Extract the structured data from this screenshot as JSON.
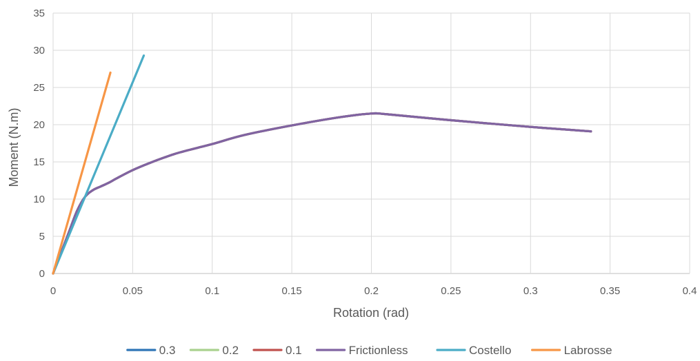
{
  "chart_data": {
    "type": "line",
    "title": "",
    "xlabel": "Rotation (rad)",
    "ylabel": "Moment (N.m)",
    "xlim": [
      0,
      0.4
    ],
    "ylim": [
      0,
      35
    ],
    "xticks": [
      0,
      0.05,
      0.1,
      0.15,
      0.2,
      0.25,
      0.3,
      0.35,
      0.4
    ],
    "xtick_labels": [
      "0",
      "0.05",
      "0.1",
      "0.15",
      "0.2",
      "0.25",
      "0.3",
      "0.35",
      "0.4"
    ],
    "yticks": [
      0,
      5,
      10,
      15,
      20,
      25,
      30,
      35
    ],
    "ytick_labels": [
      "0",
      "5",
      "10",
      "15",
      "20",
      "25",
      "30",
      "35"
    ],
    "grid": true,
    "legend_position": "bottom",
    "series": [
      {
        "name": "0.3",
        "color": "#2E75B6",
        "x": [
          0,
          0.005,
          0.01,
          0.015,
          0.02,
          0.025,
          0.03,
          0.035,
          0.04,
          0.05,
          0.06,
          0.07,
          0.08,
          0.1,
          0.12,
          0.15,
          0.18,
          0.2,
          0.21,
          0.25,
          0.3,
          0.338
        ],
        "y": [
          0,
          2.8,
          5.6,
          8.4,
          10.3,
          11.2,
          11.7,
          12.2,
          12.8,
          13.9,
          14.8,
          15.6,
          16.3,
          17.4,
          18.6,
          19.9,
          21.0,
          21.5,
          21.4,
          20.6,
          19.7,
          19.1
        ]
      },
      {
        "name": "0.2",
        "color": "#A9D18E",
        "x": [
          0,
          0.005,
          0.01,
          0.015,
          0.02,
          0.025,
          0.03,
          0.035,
          0.04,
          0.05,
          0.06,
          0.07,
          0.08,
          0.1,
          0.12,
          0.15,
          0.18,
          0.2,
          0.21,
          0.25,
          0.3,
          0.338
        ],
        "y": [
          0,
          2.8,
          5.6,
          8.4,
          10.3,
          11.2,
          11.7,
          12.2,
          12.8,
          13.9,
          14.8,
          15.6,
          16.3,
          17.4,
          18.6,
          19.9,
          21.0,
          21.5,
          21.4,
          20.6,
          19.7,
          19.1
        ]
      },
      {
        "name": "0.1",
        "color": "#C0504D",
        "x": [
          0,
          0.005,
          0.01,
          0.015,
          0.02,
          0.025,
          0.03,
          0.035,
          0.04,
          0.05,
          0.06,
          0.07,
          0.08,
          0.1,
          0.12,
          0.15,
          0.18,
          0.2,
          0.21,
          0.25,
          0.3,
          0.338
        ],
        "y": [
          0,
          2.8,
          5.6,
          8.4,
          10.3,
          11.2,
          11.7,
          12.2,
          12.8,
          13.9,
          14.8,
          15.6,
          16.3,
          17.4,
          18.6,
          19.9,
          21.0,
          21.5,
          21.4,
          20.6,
          19.7,
          19.1
        ]
      },
      {
        "name": "Frictionless",
        "color": "#8064A2",
        "x": [
          0,
          0.005,
          0.01,
          0.015,
          0.02,
          0.025,
          0.03,
          0.035,
          0.04,
          0.05,
          0.06,
          0.07,
          0.08,
          0.1,
          0.12,
          0.15,
          0.18,
          0.2,
          0.21,
          0.25,
          0.3,
          0.338
        ],
        "y": [
          0,
          2.8,
          5.6,
          8.4,
          10.3,
          11.2,
          11.7,
          12.2,
          12.8,
          13.9,
          14.8,
          15.6,
          16.3,
          17.4,
          18.6,
          19.9,
          21.0,
          21.5,
          21.4,
          20.6,
          19.7,
          19.1
        ]
      },
      {
        "name": "Costello",
        "color": "#4BACC6",
        "x": [
          0,
          0.057
        ],
        "y": [
          0,
          29.3
        ]
      },
      {
        "name": "Labrosse",
        "color": "#F79646",
        "x": [
          0,
          0.036
        ],
        "y": [
          0,
          27.0
        ]
      }
    ]
  }
}
